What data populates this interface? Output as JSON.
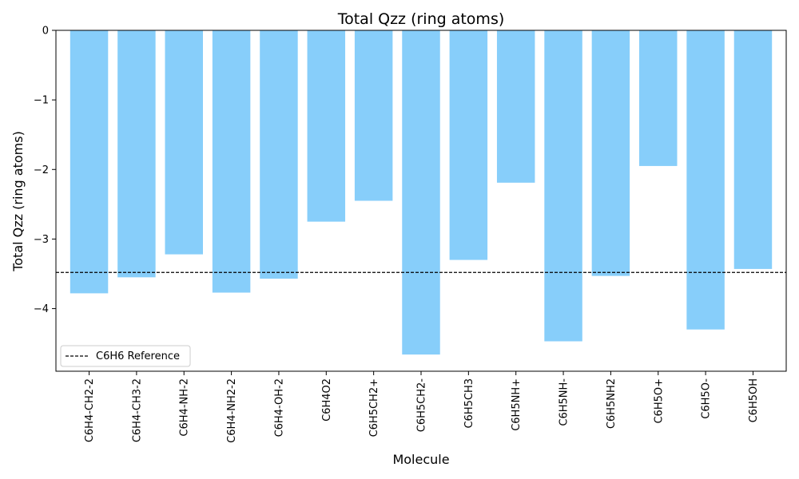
{
  "chart_data": {
    "type": "bar",
    "title": "Total Qzz (ring atoms)",
    "xlabel": "Molecule",
    "ylabel": "Total Qzz (ring atoms)",
    "categories": [
      "C6H4-CH2-2",
      "C6H4-CH3-2",
      "C6H4-NH-2",
      "C6H4-NH2-2",
      "C6H4-OH-2",
      "C6H4O2",
      "C6H5CH2+",
      "C6H5CH2-",
      "C6H5CH3",
      "C6H5NH+",
      "C6H5NH-",
      "C6H5NH2",
      "C6H5O+",
      "C6H5O-",
      "C6H5OH"
    ],
    "values": [
      -3.78,
      -3.55,
      -3.22,
      -3.77,
      -3.57,
      -2.75,
      -2.45,
      -4.66,
      -3.3,
      -2.19,
      -4.47,
      -3.53,
      -1.95,
      -4.3,
      -3.43
    ],
    "ylim": [
      -4.9,
      0
    ],
    "yticks": [
      0,
      -1,
      -2,
      -3,
      -4
    ],
    "ytick_labels": [
      "0",
      "−1",
      "−2",
      "−3",
      "−4"
    ],
    "reference": {
      "name": "C6H6 Reference",
      "value": -3.48,
      "style": "dashed",
      "color": "#000000"
    },
    "bar_color": "#87CEFA",
    "grid": false,
    "legend_position": "lower-left"
  }
}
